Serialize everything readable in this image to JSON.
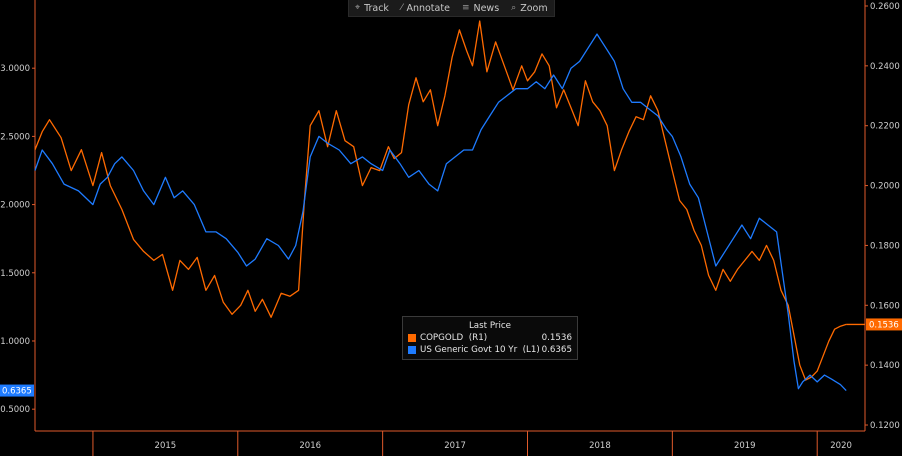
{
  "toolbar": {
    "items": [
      {
        "label": "Track",
        "icon": "crosshair-icon"
      },
      {
        "label": "Annotate",
        "icon": "pencil-icon"
      },
      {
        "label": "News",
        "icon": "news-icon"
      },
      {
        "label": "Zoom",
        "icon": "magnifier-icon"
      }
    ]
  },
  "legend": {
    "header": "Last Price",
    "rows": [
      {
        "name": "COPGOLD  (R1)",
        "value": "0.1536",
        "color": "#ff6a00"
      },
      {
        "name": "US Generic Govt 10 Yr  (L1)",
        "value": "0.6365",
        "color": "#1e7bff"
      }
    ]
  },
  "chart_data": {
    "type": "line",
    "x_ticks": [
      "2015",
      "2016",
      "2017",
      "2018",
      "2019",
      "2020"
    ],
    "xlim": [
      2014.6,
      2020.33
    ],
    "left_axis": {
      "ticks": [
        "0.5000",
        "1.0000",
        "1.5000",
        "2.0000",
        "2.5000",
        "3.0000"
      ],
      "ylim": [
        0.34,
        3.5
      ],
      "last_value_label": "0.6365",
      "last_value_color": "#1e7bff"
    },
    "right_axis": {
      "ticks": [
        "0.1200",
        "0.1400",
        "0.1600",
        "0.1800",
        "0.2000",
        "0.2200",
        "0.2400",
        "0.2600"
      ],
      "ylim": [
        0.118,
        0.262
      ],
      "last_value_label": "0.1536",
      "last_value_color": "#ff6a00"
    },
    "series": [
      {
        "name": "COPGOLD",
        "axis": "right",
        "color": "#ff6a00",
        "points": [
          [
            2014.6,
            0.212
          ],
          [
            2014.65,
            0.218
          ],
          [
            2014.7,
            0.222
          ],
          [
            2014.78,
            0.216
          ],
          [
            2014.85,
            0.205
          ],
          [
            2014.92,
            0.212
          ],
          [
            2015.0,
            0.2
          ],
          [
            2015.06,
            0.211
          ],
          [
            2015.12,
            0.2
          ],
          [
            2015.2,
            0.192
          ],
          [
            2015.28,
            0.182
          ],
          [
            2015.35,
            0.178
          ],
          [
            2015.42,
            0.175
          ],
          [
            2015.48,
            0.177
          ],
          [
            2015.55,
            0.165
          ],
          [
            2015.6,
            0.175
          ],
          [
            2015.66,
            0.172
          ],
          [
            2015.72,
            0.176
          ],
          [
            2015.78,
            0.165
          ],
          [
            2015.84,
            0.17
          ],
          [
            2015.9,
            0.161
          ],
          [
            2015.96,
            0.157
          ],
          [
            2016.02,
            0.16
          ],
          [
            2016.07,
            0.165
          ],
          [
            2016.12,
            0.158
          ],
          [
            2016.17,
            0.162
          ],
          [
            2016.23,
            0.156
          ],
          [
            2016.3,
            0.164
          ],
          [
            2016.36,
            0.163
          ],
          [
            2016.42,
            0.165
          ],
          [
            2016.46,
            0.195
          ],
          [
            2016.5,
            0.22
          ],
          [
            2016.56,
            0.225
          ],
          [
            2016.62,
            0.213
          ],
          [
            2016.68,
            0.225
          ],
          [
            2016.74,
            0.215
          ],
          [
            2016.8,
            0.213
          ],
          [
            2016.86,
            0.2
          ],
          [
            2016.92,
            0.206
          ],
          [
            2016.98,
            0.205
          ],
          [
            2017.04,
            0.213
          ],
          [
            2017.08,
            0.209
          ],
          [
            2017.13,
            0.211
          ],
          [
            2017.18,
            0.227
          ],
          [
            2017.23,
            0.236
          ],
          [
            2017.28,
            0.228
          ],
          [
            2017.33,
            0.232
          ],
          [
            2017.38,
            0.22
          ],
          [
            2017.43,
            0.23
          ],
          [
            2017.48,
            0.243
          ],
          [
            2017.53,
            0.252
          ],
          [
            2017.58,
            0.245
          ],
          [
            2017.62,
            0.24
          ],
          [
            2017.67,
            0.255
          ],
          [
            2017.72,
            0.238
          ],
          [
            2017.78,
            0.248
          ],
          [
            2017.84,
            0.24
          ],
          [
            2017.9,
            0.232
          ],
          [
            2017.96,
            0.24
          ],
          [
            2018.0,
            0.235
          ],
          [
            2018.05,
            0.238
          ],
          [
            2018.1,
            0.244
          ],
          [
            2018.15,
            0.24
          ],
          [
            2018.2,
            0.226
          ],
          [
            2018.25,
            0.232
          ],
          [
            2018.3,
            0.226
          ],
          [
            2018.35,
            0.22
          ],
          [
            2018.4,
            0.235
          ],
          [
            2018.45,
            0.228
          ],
          [
            2018.5,
            0.225
          ],
          [
            2018.55,
            0.22
          ],
          [
            2018.6,
            0.205
          ],
          [
            2018.65,
            0.212
          ],
          [
            2018.7,
            0.218
          ],
          [
            2018.75,
            0.223
          ],
          [
            2018.8,
            0.222
          ],
          [
            2018.85,
            0.23
          ],
          [
            2018.9,
            0.225
          ],
          [
            2018.95,
            0.215
          ],
          [
            2019.0,
            0.205
          ],
          [
            2019.05,
            0.195
          ],
          [
            2019.1,
            0.192
          ],
          [
            2019.15,
            0.185
          ],
          [
            2019.2,
            0.18
          ],
          [
            2019.25,
            0.17
          ],
          [
            2019.3,
            0.165
          ],
          [
            2019.35,
            0.172
          ],
          [
            2019.4,
            0.168
          ],
          [
            2019.45,
            0.172
          ],
          [
            2019.5,
            0.175
          ],
          [
            2019.55,
            0.178
          ],
          [
            2019.6,
            0.175
          ],
          [
            2019.65,
            0.18
          ],
          [
            2019.7,
            0.175
          ],
          [
            2019.75,
            0.165
          ],
          [
            2019.8,
            0.16
          ],
          [
            2019.84,
            0.15
          ],
          [
            2019.88,
            0.14
          ],
          [
            2019.92,
            0.135
          ],
          [
            2019.96,
            0.136
          ],
          [
            2020.0,
            0.138
          ],
          [
            2020.04,
            0.143
          ],
          [
            2020.08,
            0.148
          ],
          [
            2020.12,
            0.152
          ],
          [
            2020.16,
            0.153
          ],
          [
            2020.2,
            0.1536
          ]
        ]
      },
      {
        "name": "US Generic Govt 10 Yr",
        "axis": "left",
        "color": "#1e7bff",
        "points": [
          [
            2014.6,
            2.25
          ],
          [
            2014.65,
            2.4
          ],
          [
            2014.72,
            2.3
          ],
          [
            2014.8,
            2.15
          ],
          [
            2014.9,
            2.1
          ],
          [
            2015.0,
            2.0
          ],
          [
            2015.05,
            2.15
          ],
          [
            2015.1,
            2.2
          ],
          [
            2015.15,
            2.3
          ],
          [
            2015.2,
            2.35
          ],
          [
            2015.28,
            2.25
          ],
          [
            2015.35,
            2.1
          ],
          [
            2015.42,
            2.0
          ],
          [
            2015.5,
            2.2
          ],
          [
            2015.56,
            2.05
          ],
          [
            2015.62,
            2.1
          ],
          [
            2015.7,
            2.0
          ],
          [
            2015.78,
            1.8
          ],
          [
            2015.85,
            1.8
          ],
          [
            2015.92,
            1.75
          ],
          [
            2016.0,
            1.65
          ],
          [
            2016.06,
            1.55
          ],
          [
            2016.12,
            1.6
          ],
          [
            2016.2,
            1.75
          ],
          [
            2016.28,
            1.7
          ],
          [
            2016.35,
            1.6
          ],
          [
            2016.4,
            1.7
          ],
          [
            2016.45,
            1.95
          ],
          [
            2016.5,
            2.35
          ],
          [
            2016.56,
            2.5
          ],
          [
            2016.62,
            2.45
          ],
          [
            2016.7,
            2.4
          ],
          [
            2016.78,
            2.3
          ],
          [
            2016.86,
            2.35
          ],
          [
            2016.92,
            2.3
          ],
          [
            2017.0,
            2.25
          ],
          [
            2017.05,
            2.4
          ],
          [
            2017.12,
            2.3
          ],
          [
            2017.18,
            2.2
          ],
          [
            2017.25,
            2.25
          ],
          [
            2017.32,
            2.15
          ],
          [
            2017.38,
            2.1
          ],
          [
            2017.44,
            2.3
          ],
          [
            2017.5,
            2.35
          ],
          [
            2017.56,
            2.4
          ],
          [
            2017.62,
            2.4
          ],
          [
            2017.68,
            2.55
          ],
          [
            2017.74,
            2.65
          ],
          [
            2017.8,
            2.75
          ],
          [
            2017.86,
            2.8
          ],
          [
            2017.92,
            2.85
          ],
          [
            2018.0,
            2.85
          ],
          [
            2018.06,
            2.9
          ],
          [
            2018.12,
            2.85
          ],
          [
            2018.18,
            2.95
          ],
          [
            2018.24,
            2.85
          ],
          [
            2018.3,
            3.0
          ],
          [
            2018.36,
            3.05
          ],
          [
            2018.42,
            3.15
          ],
          [
            2018.48,
            3.25
          ],
          [
            2018.54,
            3.15
          ],
          [
            2018.6,
            3.05
          ],
          [
            2018.66,
            2.85
          ],
          [
            2018.72,
            2.75
          ],
          [
            2018.78,
            2.75
          ],
          [
            2018.84,
            2.7
          ],
          [
            2018.9,
            2.65
          ],
          [
            2018.96,
            2.55
          ],
          [
            2019.0,
            2.5
          ],
          [
            2019.06,
            2.35
          ],
          [
            2019.12,
            2.15
          ],
          [
            2019.18,
            2.05
          ],
          [
            2019.24,
            1.8
          ],
          [
            2019.3,
            1.55
          ],
          [
            2019.36,
            1.65
          ],
          [
            2019.42,
            1.75
          ],
          [
            2019.48,
            1.85
          ],
          [
            2019.54,
            1.75
          ],
          [
            2019.6,
            1.9
          ],
          [
            2019.66,
            1.85
          ],
          [
            2019.72,
            1.8
          ],
          [
            2019.76,
            1.5
          ],
          [
            2019.8,
            1.2
          ],
          [
            2019.84,
            0.85
          ],
          [
            2019.87,
            0.65
          ],
          [
            2019.9,
            0.7
          ],
          [
            2019.95,
            0.75
          ],
          [
            2020.0,
            0.7
          ],
          [
            2020.05,
            0.75
          ],
          [
            2020.1,
            0.72
          ],
          [
            2020.16,
            0.68
          ],
          [
            2020.2,
            0.6365
          ]
        ]
      }
    ]
  }
}
